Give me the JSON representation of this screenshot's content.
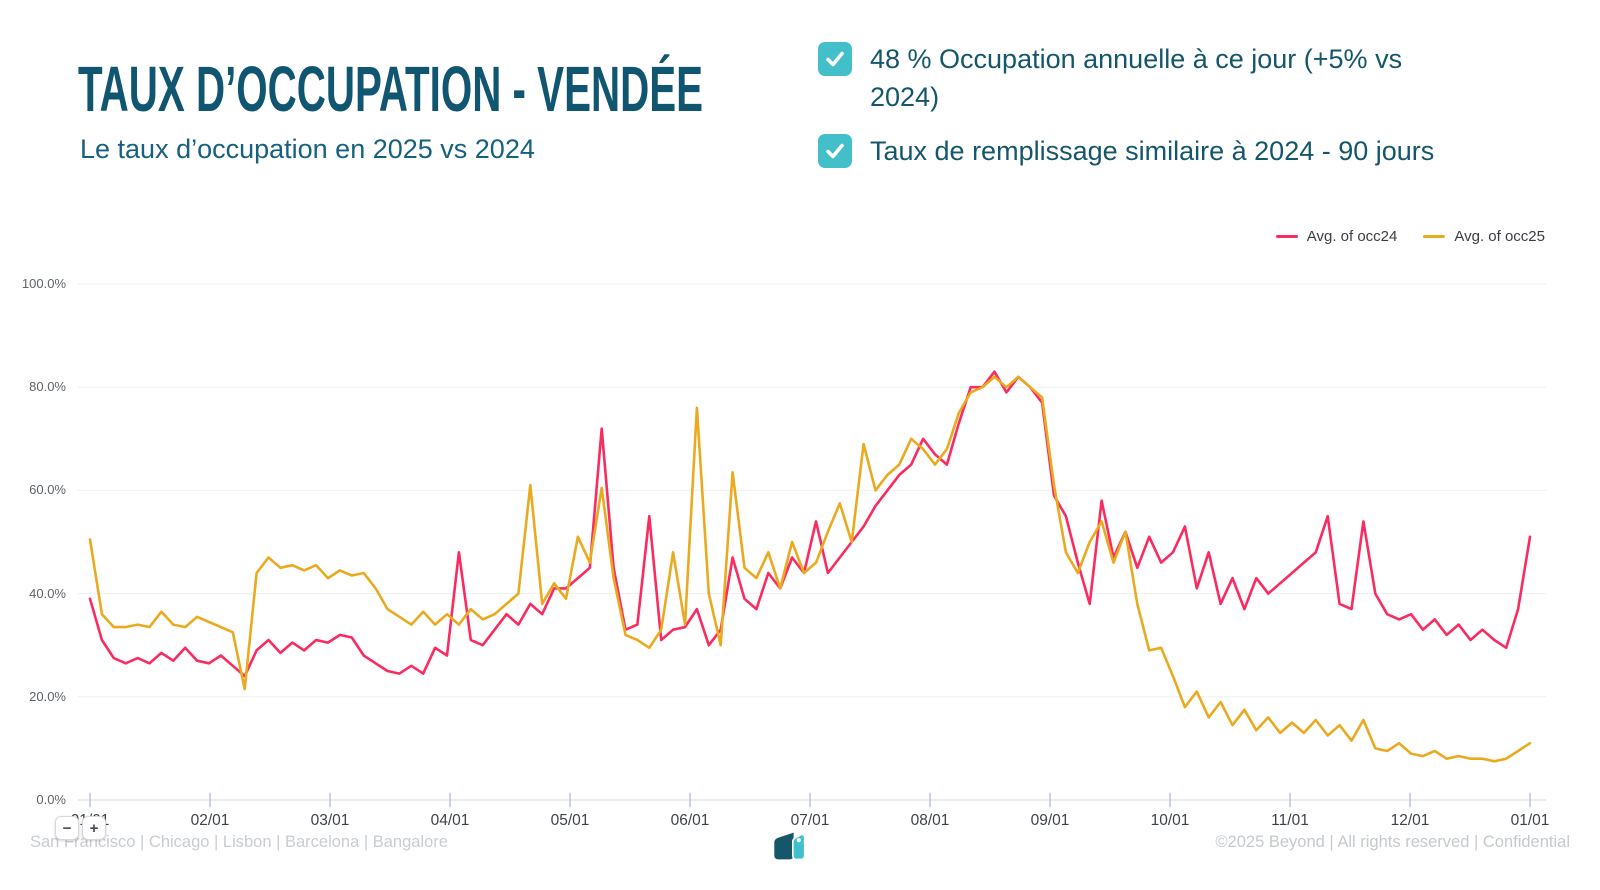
{
  "header": {
    "title": "TAUX D’OCCUPATION - VENDÉE",
    "subtitle": "Le taux d’occupation en 2025 vs 2024"
  },
  "highlights": {
    "accent_color": "#43BFCA",
    "items": [
      {
        "checked": true,
        "text": "48 % Occupation annuelle à ce jour (+5% vs 2024)"
      },
      {
        "checked": true,
        "text": "Taux de remplissage similaire à 2024 - 90 jours"
      }
    ]
  },
  "chart_data": {
    "type": "line",
    "title": "",
    "x_description": "Day of year from 01/01 to following 01/01, values sampled every 3 days",
    "x_ticks": [
      "01/01",
      "02/01",
      "03/01",
      "04/01",
      "05/01",
      "06/01",
      "07/01",
      "08/01",
      "09/01",
      "10/01",
      "11/01",
      "12/01",
      "01/01"
    ],
    "y_ticks": [
      {
        "label": "0.0%",
        "value": 0
      },
      {
        "label": "20.0%",
        "value": 20
      },
      {
        "label": "40.0%",
        "value": 40
      },
      {
        "label": "60.0%",
        "value": 60
      },
      {
        "label": "80.0%",
        "value": 80
      },
      {
        "label": "100.0%",
        "value": 100
      }
    ],
    "ylim": [
      0,
      100
    ],
    "grid": true,
    "grid_color": "#efeff1",
    "axis_color": "#e6e6e9",
    "tick_color": "#b9c6e8",
    "legend_position": "top-right",
    "series": [
      {
        "name": "Avg. of occ24",
        "color": "#FA2B60",
        "values": [
          39,
          31,
          27.5,
          26.5,
          27.5,
          26.5,
          28.5,
          27,
          29.5,
          27,
          26.5,
          28,
          26,
          24,
          29,
          31,
          28.5,
          30.5,
          29,
          31,
          30.5,
          32,
          31.5,
          28,
          26.5,
          25,
          24.5,
          26,
          24.5,
          29.5,
          28,
          48,
          31,
          30,
          33,
          36,
          34,
          38,
          36,
          41,
          41,
          43,
          45,
          72,
          45,
          33,
          34,
          55,
          31,
          33,
          33.5,
          37,
          30,
          33,
          47,
          39,
          37,
          44,
          41,
          47,
          44,
          54,
          44,
          47,
          50,
          53,
          57,
          60,
          63,
          65,
          70,
          67,
          65,
          73,
          80,
          80,
          83,
          79,
          82,
          80,
          77,
          59,
          55,
          46,
          38,
          58,
          47,
          52,
          45,
          51,
          46,
          48,
          53,
          41,
          48,
          38,
          43,
          37,
          43,
          40,
          42,
          44,
          46,
          48,
          55,
          38,
          37,
          54,
          40,
          36,
          35,
          36,
          33,
          35,
          32,
          34,
          31,
          33,
          31,
          29.5,
          37,
          51
        ]
      },
      {
        "name": "Avg. of occ25",
        "color": "#EAAA1F",
        "values": [
          50.5,
          36,
          33.5,
          33.5,
          34,
          33.5,
          36.5,
          34,
          33.5,
          35.5,
          34.5,
          33.5,
          32.5,
          21.5,
          44,
          47,
          45,
          45.5,
          44.5,
          45.5,
          43,
          44.5,
          43.5,
          44,
          41,
          37,
          35.5,
          34,
          36.5,
          34,
          36,
          34,
          37,
          35,
          36,
          38,
          40,
          61,
          38,
          42,
          39,
          51,
          46,
          60.5,
          43,
          32,
          31,
          29.5,
          33,
          48,
          34,
          76,
          40,
          30,
          63.5,
          45,
          43,
          48,
          41,
          50,
          44,
          46,
          52,
          57.5,
          50,
          69,
          60,
          63,
          65,
          70,
          68,
          65,
          68,
          75,
          79,
          80,
          82,
          80,
          82,
          80,
          78,
          61,
          48,
          44,
          50,
          54,
          46,
          52,
          38,
          29,
          29.5,
          24,
          18,
          21,
          16,
          19,
          14.5,
          17.5,
          13.5,
          16,
          13,
          15,
          13,
          15.5,
          12.5,
          14.5,
          11.5,
          15.5,
          10,
          9.5,
          11,
          9,
          8.5,
          9.5,
          8,
          8.5,
          8,
          8,
          7.5,
          8,
          9.5,
          11
        ]
      }
    ]
  },
  "zoom_controls": {
    "minus": "−",
    "plus": "+"
  },
  "footer": {
    "left": "San Francisco | Chicago | Lisbon | Barcelona | Bangalore",
    "right": "©2025 Beyond | All rights reserved | Confidential",
    "logo": "beyond-tags-logo",
    "logo_colors": {
      "dark": "#15566B",
      "light": "#3FC0CE"
    }
  }
}
